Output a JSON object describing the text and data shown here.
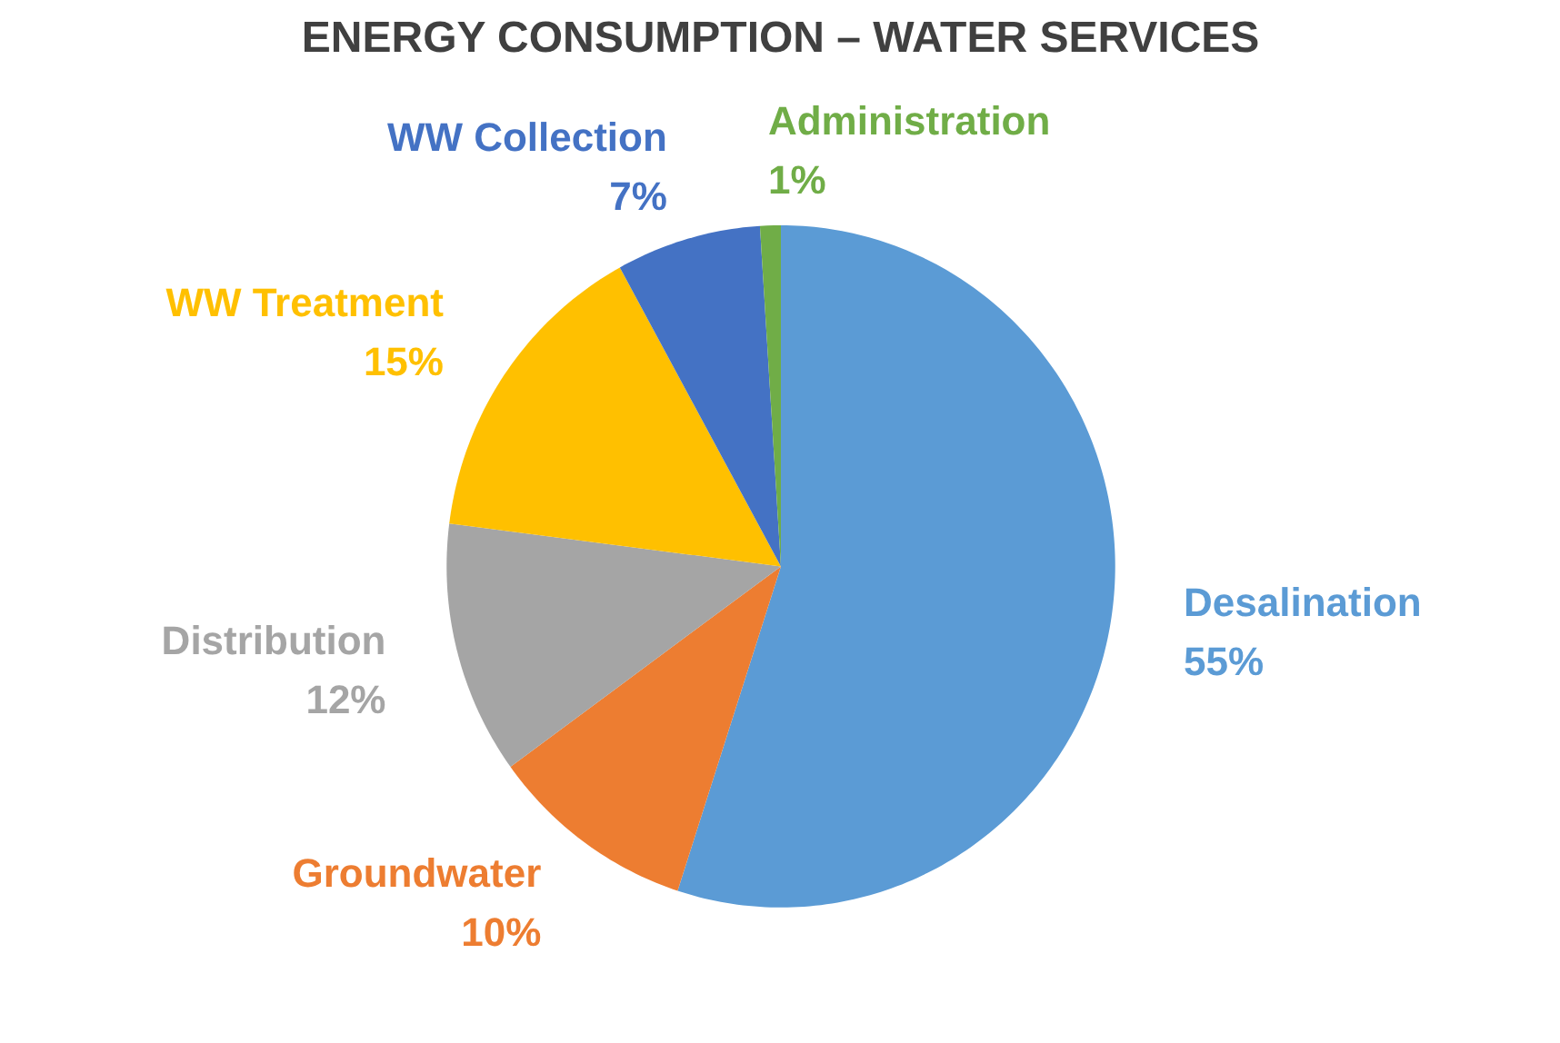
{
  "chart_data": {
    "type": "pie",
    "title": "ENERGY CONSUMPTION – WATER SERVICES",
    "categories": [
      "Desalination",
      "Groundwater",
      "Distribution",
      "WW Treatment",
      "WW Collection",
      "Administration"
    ],
    "values": [
      55,
      10,
      12,
      15,
      7,
      1
    ],
    "value_labels": [
      "55%",
      "10%",
      "12%",
      "15%",
      "7%",
      "1%"
    ],
    "colors": [
      "#5b9bd5",
      "#ed7d31",
      "#a5a5a5",
      "#ffc000",
      "#4472c4",
      "#70ad47"
    ],
    "legend": false
  }
}
